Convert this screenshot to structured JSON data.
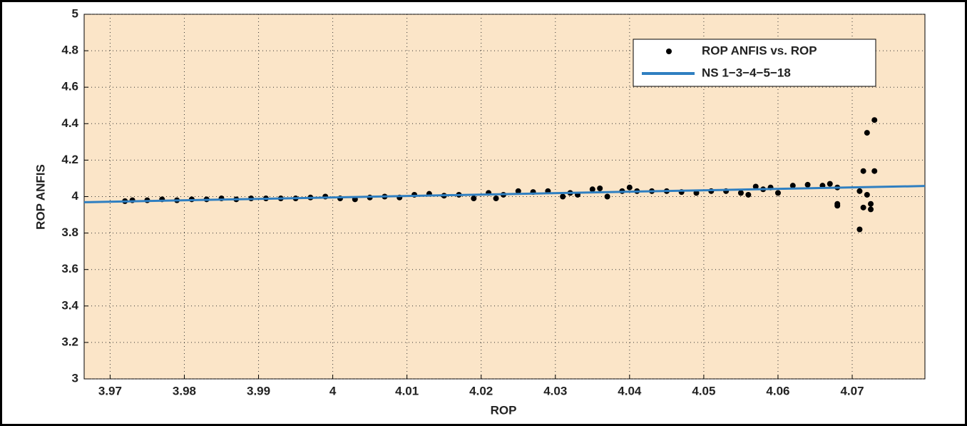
{
  "chart_data": {
    "type": "scatter",
    "xlabel": "ROP",
    "ylabel": "ROP ANFIS",
    "xlim": [
      3.9665,
      4.0798
    ],
    "ylim": [
      3,
      5
    ],
    "xticks": [
      3.97,
      3.98,
      3.99,
      4,
      4.01,
      4.02,
      4.03,
      4.04,
      4.05,
      4.06,
      4.07
    ],
    "yticks": [
      3,
      3.2,
      3.4,
      3.6,
      3.8,
      4,
      4.2,
      4.4,
      4.6,
      4.8,
      5
    ],
    "grid": true,
    "legend": "upper right",
    "background": "#fbe5c8",
    "series": [
      {
        "name": "ROP ANFIS vs. ROP",
        "type": "scatter",
        "color": "#000000",
        "x": [
          3.972,
          3.973,
          3.975,
          3.977,
          3.979,
          3.981,
          3.983,
          3.985,
          3.987,
          3.989,
          3.991,
          3.993,
          3.995,
          3.997,
          3.999,
          4.001,
          4.003,
          4.005,
          4.007,
          4.009,
          4.011,
          4.013,
          4.015,
          4.017,
          4.019,
          4.021,
          4.022,
          4.023,
          4.025,
          4.027,
          4.029,
          4.031,
          4.032,
          4.033,
          4.035,
          4.036,
          4.037,
          4.039,
          4.04,
          4.041,
          4.043,
          4.045,
          4.047,
          4.049,
          4.051,
          4.053,
          4.055,
          4.056,
          4.057,
          4.058,
          4.059,
          4.06,
          4.062,
          4.064,
          4.066,
          4.067,
          4.068,
          4.068,
          4.068,
          4.071,
          4.071,
          4.0715,
          4.0715,
          4.072,
          4.072,
          4.0725,
          4.0725,
          4.073,
          4.073
        ],
        "values": [
          3.975,
          3.98,
          3.98,
          3.985,
          3.98,
          3.985,
          3.985,
          3.99,
          3.985,
          3.99,
          3.99,
          3.99,
          3.99,
          3.995,
          4.0,
          3.99,
          3.985,
          3.995,
          4.0,
          3.995,
          4.01,
          4.015,
          4.005,
          4.01,
          3.99,
          4.02,
          3.99,
          4.01,
          4.03,
          4.025,
          4.03,
          4.0,
          4.02,
          4.01,
          4.04,
          4.045,
          4.0,
          4.03,
          4.05,
          4.03,
          4.03,
          4.03,
          4.025,
          4.02,
          4.03,
          4.03,
          4.02,
          4.01,
          4.055,
          4.04,
          4.05,
          4.02,
          4.06,
          4.065,
          4.06,
          4.07,
          4.05,
          3.96,
          3.95,
          3.82,
          4.03,
          4.14,
          3.94,
          4.35,
          4.01,
          3.96,
          3.93,
          4.42,
          4.14
        ]
      },
      {
        "name": "NS 1−3−4−5−18",
        "type": "line",
        "color": "#2f7fc1",
        "x": [
          3.9665,
          4.0798
        ],
        "values": [
          3.969,
          4.058
        ]
      }
    ]
  }
}
